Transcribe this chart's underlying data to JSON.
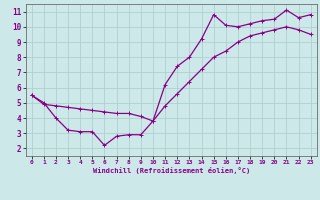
{
  "xlabel": "Windchill (Refroidissement éolien,°C)",
  "bg_color": "#cce8e8",
  "line_color": "#880088",
  "grid_color": "#aacccc",
  "xlim": [
    -0.5,
    23.5
  ],
  "ylim": [
    1.5,
    11.5
  ],
  "xticks": [
    0,
    1,
    2,
    3,
    4,
    5,
    6,
    7,
    8,
    9,
    10,
    11,
    12,
    13,
    14,
    15,
    16,
    17,
    18,
    19,
    20,
    21,
    22,
    23
  ],
  "yticks": [
    2,
    3,
    4,
    5,
    6,
    7,
    8,
    9,
    10,
    11
  ],
  "line1_x": [
    0,
    1,
    2,
    3,
    4,
    5,
    6,
    7,
    8,
    9,
    10,
    11,
    12,
    13,
    14,
    15,
    16,
    17,
    18,
    19,
    20,
    21,
    22,
    23
  ],
  "line1_y": [
    5.5,
    5.0,
    4.0,
    3.2,
    3.1,
    3.1,
    2.2,
    2.8,
    2.9,
    2.9,
    3.8,
    6.2,
    7.4,
    8.0,
    9.2,
    10.8,
    10.1,
    10.0,
    10.2,
    10.4,
    10.5,
    11.1,
    10.6,
    10.8
  ],
  "line2_x": [
    0,
    1,
    2,
    3,
    4,
    5,
    6,
    7,
    8,
    9,
    10,
    11,
    12,
    13,
    14,
    15,
    16,
    17,
    18,
    19,
    20,
    21,
    22,
    23
  ],
  "line2_y": [
    5.5,
    4.9,
    4.8,
    4.7,
    4.6,
    4.5,
    4.4,
    4.3,
    4.3,
    4.1,
    3.8,
    4.8,
    5.6,
    6.4,
    7.2,
    8.0,
    8.4,
    9.0,
    9.4,
    9.6,
    9.8,
    10.0,
    9.8,
    9.5
  ],
  "marker": "+",
  "markersize": 3,
  "linewidth": 0.9
}
